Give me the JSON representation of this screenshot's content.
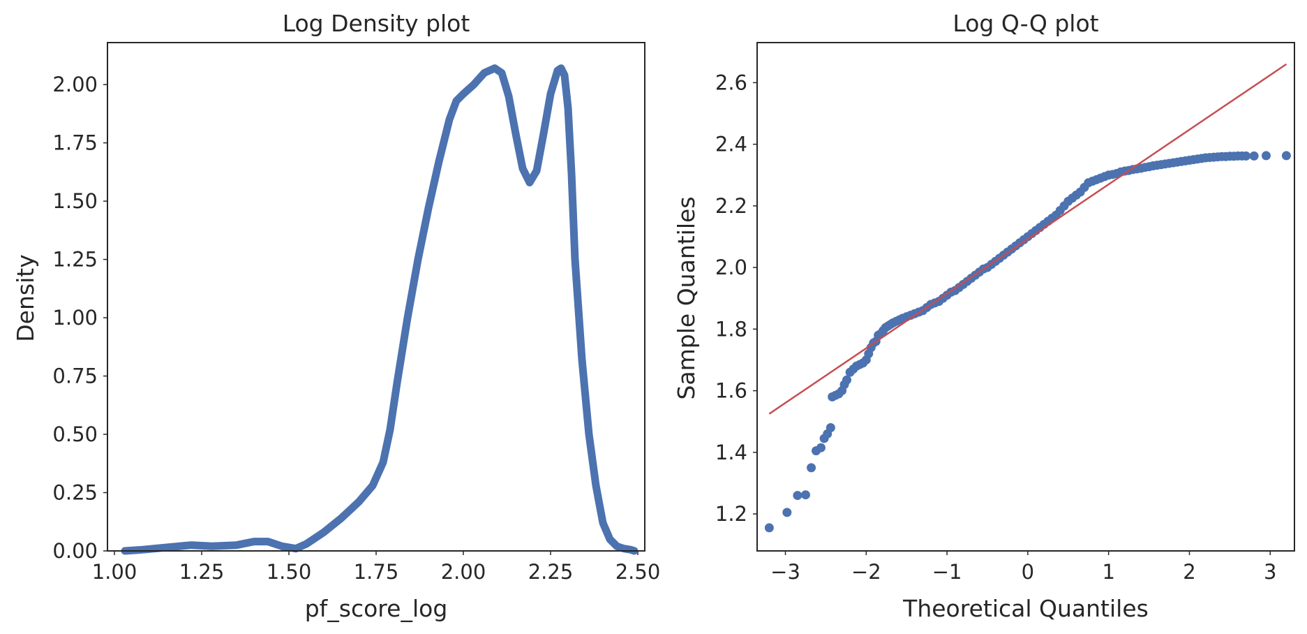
{
  "colors": {
    "series": "#4c72b0",
    "reference": "#c44e52",
    "text": "#262626"
  },
  "chart_data": [
    {
      "type": "line",
      "title": "Log Density plot",
      "xlabel": "pf_score_log",
      "ylabel": "Density",
      "xlim": [
        0.98,
        2.52
      ],
      "ylim": [
        0,
        2.18
      ],
      "xticks": [
        1.0,
        1.25,
        1.5,
        1.75,
        2.0,
        2.25,
        2.5
      ],
      "xtick_labels": [
        "1.00",
        "1.25",
        "1.50",
        "1.75",
        "2.00",
        "2.25",
        "2.50"
      ],
      "yticks": [
        0,
        0.25,
        0.5,
        0.75,
        1.0,
        1.25,
        1.5,
        1.75,
        2.0
      ],
      "ytick_labels": [
        "0.00",
        "0.25",
        "0.50",
        "0.75",
        "1.00",
        "1.25",
        "1.50",
        "1.75",
        "2.00"
      ],
      "grid": false,
      "series": [
        {
          "name": "pf_score_log density",
          "x": [
            1.03,
            1.08,
            1.15,
            1.22,
            1.28,
            1.35,
            1.4,
            1.44,
            1.48,
            1.52,
            1.55,
            1.6,
            1.65,
            1.7,
            1.74,
            1.77,
            1.79,
            1.81,
            1.84,
            1.87,
            1.9,
            1.93,
            1.96,
            1.98,
            2.0,
            2.03,
            2.06,
            2.09,
            2.11,
            2.13,
            2.15,
            2.17,
            2.19,
            2.21,
            2.23,
            2.25,
            2.27,
            2.28,
            2.29,
            2.3,
            2.31,
            2.32,
            2.34,
            2.36,
            2.38,
            2.4,
            2.42,
            2.44,
            2.46,
            2.48,
            2.49
          ],
          "y": [
            0.0,
            0.005,
            0.015,
            0.025,
            0.02,
            0.025,
            0.04,
            0.04,
            0.02,
            0.01,
            0.03,
            0.08,
            0.14,
            0.21,
            0.28,
            0.38,
            0.52,
            0.72,
            1.0,
            1.25,
            1.47,
            1.67,
            1.85,
            1.93,
            1.96,
            2.0,
            2.05,
            2.07,
            2.05,
            1.95,
            1.79,
            1.64,
            1.58,
            1.63,
            1.79,
            1.96,
            2.06,
            2.07,
            2.04,
            1.9,
            1.62,
            1.25,
            0.82,
            0.5,
            0.28,
            0.12,
            0.05,
            0.02,
            0.01,
            0.005,
            0.0
          ]
        }
      ]
    },
    {
      "type": "scatter",
      "title": "Log Q-Q plot",
      "xlabel": "Theoretical Quantiles",
      "ylabel": "Sample Quantiles",
      "xlim": [
        -3.35,
        3.3
      ],
      "ylim": [
        1.08,
        2.73
      ],
      "xticks": [
        -3,
        -2,
        -1,
        0,
        1,
        2,
        3
      ],
      "xtick_labels": [
        "−3",
        "−2",
        "−1",
        "0",
        "1",
        "2",
        "3"
      ],
      "yticks": [
        1.2,
        1.4,
        1.6,
        1.8,
        2.0,
        2.2,
        2.4,
        2.6
      ],
      "ytick_labels": [
        "1.2",
        "1.4",
        "1.6",
        "1.8",
        "2.0",
        "2.2",
        "2.4",
        "2.6"
      ],
      "grid": false,
      "reference_line": {
        "x": [
          -3.2,
          3.2
        ],
        "y": [
          1.525,
          2.66
        ]
      },
      "series": [
        {
          "name": "sample quantiles",
          "x": [
            -3.2,
            -2.98,
            -2.85,
            -2.75,
            -2.68,
            -2.62,
            -2.56,
            -2.52,
            -2.48,
            -2.44,
            -2.42,
            -2.38,
            -2.34,
            -2.3,
            -2.27,
            -2.24,
            -2.2,
            -2.16,
            -2.12,
            -2.08,
            -2.04,
            -2.0,
            -1.97,
            -1.94,
            -1.91,
            -1.88,
            -1.85,
            -1.82,
            -1.79,
            -1.76,
            -1.73,
            -1.7,
            -1.67,
            -1.63,
            -1.59,
            -1.55,
            -1.5,
            -1.45,
            -1.4,
            -1.35,
            -1.3,
            -1.25,
            -1.2,
            -1.15,
            -1.1,
            -1.05,
            -1.0,
            -0.95,
            -0.9,
            -0.85,
            -0.8,
            -0.75,
            -0.7,
            -0.65,
            -0.6,
            -0.55,
            -0.5,
            -0.45,
            -0.4,
            -0.35,
            -0.3,
            -0.25,
            -0.2,
            -0.15,
            -0.1,
            -0.05,
            0.0,
            0.05,
            0.1,
            0.15,
            0.2,
            0.25,
            0.3,
            0.35,
            0.4,
            0.45,
            0.5,
            0.55,
            0.6,
            0.65,
            0.7,
            0.75,
            0.8,
            0.85,
            0.9,
            0.95,
            1.0,
            1.05,
            1.1,
            1.15,
            1.2,
            1.25,
            1.3,
            1.35,
            1.4,
            1.45,
            1.5,
            1.55,
            1.6,
            1.65,
            1.7,
            1.75,
            1.8,
            1.85,
            1.9,
            1.95,
            2.0,
            2.05,
            2.1,
            2.15,
            2.2,
            2.25,
            2.3,
            2.35,
            2.4,
            2.45,
            2.5,
            2.55,
            2.6,
            2.65,
            2.7,
            2.8,
            2.95,
            3.2
          ],
          "y": [
            1.155,
            1.205,
            1.26,
            1.262,
            1.35,
            1.405,
            1.415,
            1.445,
            1.46,
            1.48,
            1.58,
            1.585,
            1.59,
            1.6,
            1.62,
            1.635,
            1.66,
            1.67,
            1.68,
            1.685,
            1.69,
            1.7,
            1.72,
            1.74,
            1.755,
            1.76,
            1.78,
            1.785,
            1.795,
            1.805,
            1.81,
            1.815,
            1.82,
            1.825,
            1.83,
            1.835,
            1.84,
            1.845,
            1.85,
            1.855,
            1.86,
            1.87,
            1.88,
            1.885,
            1.89,
            1.9,
            1.91,
            1.92,
            1.925,
            1.935,
            1.945,
            1.955,
            1.965,
            1.975,
            1.985,
            1.995,
            2.0,
            2.01,
            2.02,
            2.03,
            2.04,
            2.05,
            2.06,
            2.07,
            2.08,
            2.09,
            2.1,
            2.11,
            2.12,
            2.13,
            2.14,
            2.15,
            2.16,
            2.17,
            2.185,
            2.2,
            2.215,
            2.225,
            2.235,
            2.245,
            2.26,
            2.275,
            2.28,
            2.285,
            2.29,
            2.295,
            2.3,
            2.302,
            2.305,
            2.31,
            2.313,
            2.315,
            2.318,
            2.32,
            2.322,
            2.325,
            2.327,
            2.33,
            2.332,
            2.334,
            2.336,
            2.338,
            2.34,
            2.342,
            2.344,
            2.346,
            2.348,
            2.35,
            2.352,
            2.354,
            2.356,
            2.357,
            2.358,
            2.359,
            2.36,
            2.36,
            2.361,
            2.361,
            2.362,
            2.362,
            2.362,
            2.362,
            2.363,
            2.363
          ]
        }
      ]
    }
  ]
}
